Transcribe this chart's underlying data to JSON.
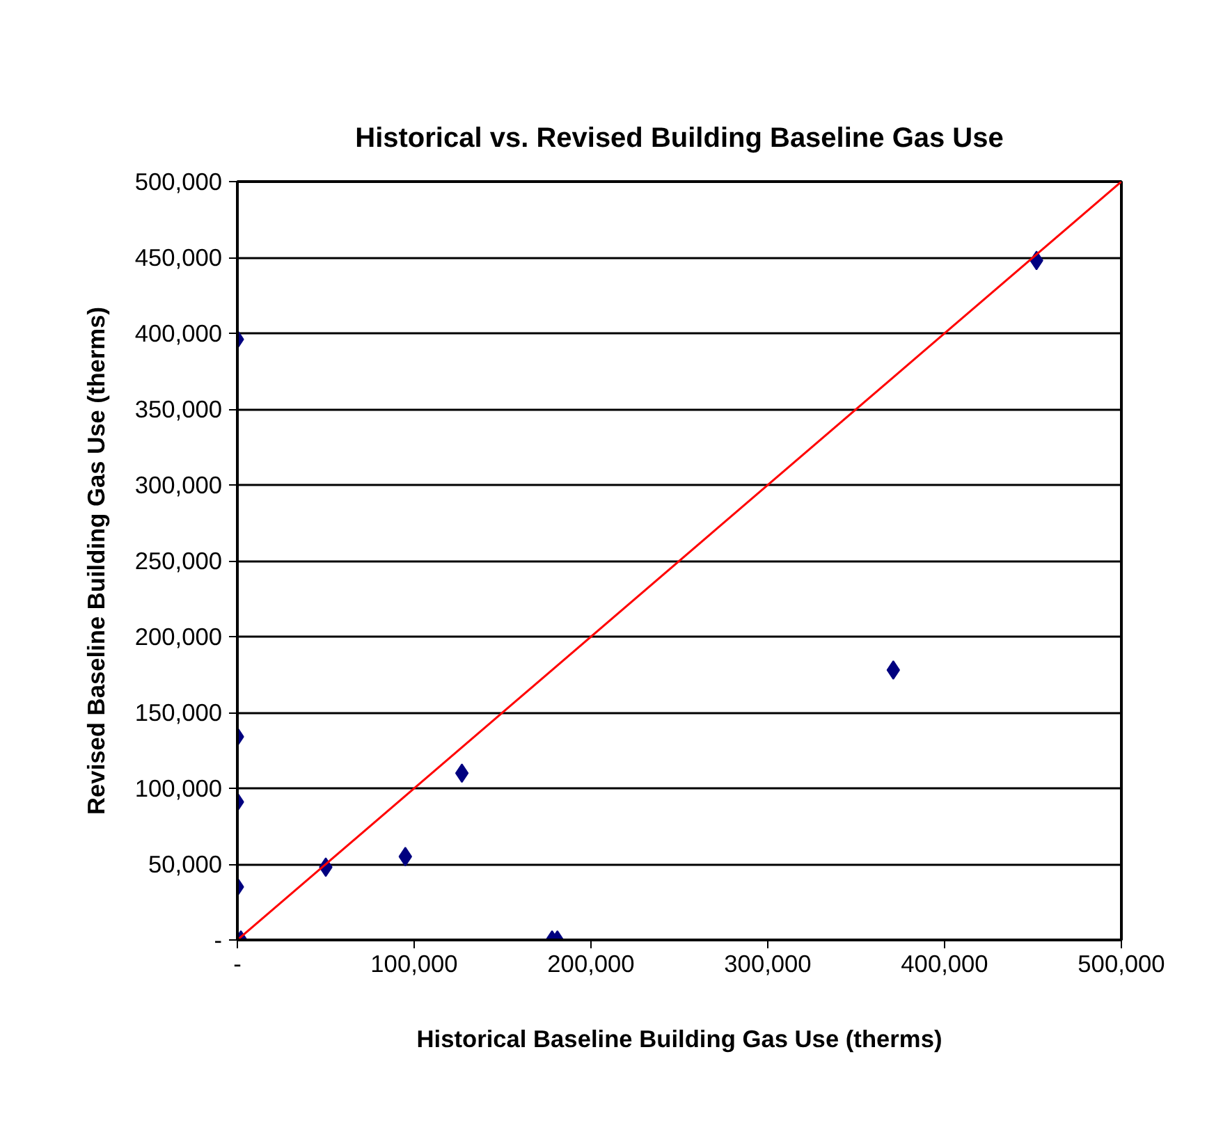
{
  "chart_data": {
    "type": "scatter",
    "title": "Historical vs. Revised Building Baseline Gas Use",
    "xlabel": "Historical Baseline Building Gas Use (therms)",
    "ylabel": "Revised Baseline Building Gas Use (therms)",
    "x": [
      0,
      0,
      0,
      0,
      2000,
      50000,
      95000,
      127000,
      178000,
      181000,
      371000,
      452000
    ],
    "series": [
      {
        "color": "#000080",
        "marker": "diamond",
        "values": [
          396000,
          134000,
          91000,
          35000,
          0,
          48000,
          55000,
          110000,
          0,
          0,
          178000,
          448000
        ]
      },
      {
        "color": "#ff0000",
        "type": "line",
        "marker": "none",
        "x": [
          0,
          500000
        ],
        "values": [
          0,
          500000
        ]
      }
    ],
    "xlim": [
      0,
      500000
    ],
    "ylim": [
      0,
      500000
    ],
    "xticks": [
      {
        "value": 0,
        "label": "-"
      },
      {
        "value": 100000,
        "label": "100,000"
      },
      {
        "value": 200000,
        "label": "200,000"
      },
      {
        "value": 300000,
        "label": "300,000"
      },
      {
        "value": 400000,
        "label": "400,000"
      },
      {
        "value": 500000,
        "label": "500,000"
      }
    ],
    "yticks": [
      {
        "value": 0,
        "label": "-"
      },
      {
        "value": 50000,
        "label": "50,000"
      },
      {
        "value": 100000,
        "label": "100,000"
      },
      {
        "value": 150000,
        "label": "150,000"
      },
      {
        "value": 200000,
        "label": "200,000"
      },
      {
        "value": 250000,
        "label": "250,000"
      },
      {
        "value": 300000,
        "label": "300,000"
      },
      {
        "value": 350000,
        "label": "350,000"
      },
      {
        "value": 400000,
        "label": "400,000"
      },
      {
        "value": 450000,
        "label": "450,000"
      },
      {
        "value": 500000,
        "label": "500,000"
      }
    ],
    "grid": "y"
  }
}
